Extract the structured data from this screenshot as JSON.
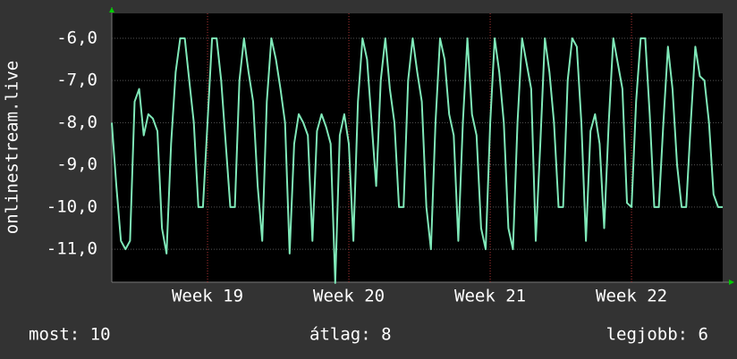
{
  "chart_data": {
    "type": "line",
    "y_label": "onlinestream.live",
    "series": [
      {
        "name": null,
        "color": "#7fe8b8",
        "values": [
          -8,
          -9.5,
          -10.8,
          -11,
          -10.8,
          -7.5,
          -7.2,
          -8.3,
          -7.8,
          -7.9,
          -8.2,
          -10.5,
          -11.1,
          -8.5,
          -6.8,
          -6,
          -6,
          -7,
          -8,
          -10,
          -10,
          -8,
          -6,
          -6,
          -7,
          -8.5,
          -10,
          -10,
          -7,
          -6,
          -6.8,
          -7.5,
          -9.5,
          -10.8,
          -7.5,
          -6,
          -6.5,
          -7.2,
          -8,
          -11.1,
          -8.5,
          -7.8,
          -8,
          -8.3,
          -10.8,
          -8.2,
          -7.8,
          -8.1,
          -8.5,
          -11.8,
          -8.3,
          -7.8,
          -8.5,
          -10.8,
          -7.5,
          -6,
          -6.5,
          -8,
          -9.5,
          -7,
          -6,
          -7.2,
          -8,
          -10,
          -10,
          -7,
          -6,
          -6.8,
          -7.5,
          -10,
          -11,
          -8,
          -6,
          -6.5,
          -7.8,
          -8.3,
          -10.8,
          -8,
          -6,
          -7.8,
          -8.3,
          -10.5,
          -11,
          -8,
          -6,
          -6.8,
          -8,
          -10.5,
          -11,
          -8,
          -6,
          -6.6,
          -7.2,
          -10.8,
          -8.5,
          -6,
          -6.8,
          -8,
          -10,
          -10,
          -7,
          -6,
          -6.2,
          -8,
          -10.8,
          -8.2,
          -7.8,
          -8.5,
          -10.5,
          -8,
          -6,
          -6.6,
          -7.2,
          -9.9,
          -10,
          -7.5,
          -6,
          -6,
          -7.8,
          -10,
          -10,
          -8,
          -6.2,
          -7.2,
          -9,
          -10,
          -10,
          -8,
          -6.2,
          -6.9,
          -7,
          -8,
          -9.7,
          -10,
          -10
        ]
      }
    ],
    "xlim": [
      0,
      134
    ],
    "xticks": [
      {
        "value": 21,
        "label": "Week 19"
      },
      {
        "value": 52,
        "label": "Week 20"
      },
      {
        "value": 83,
        "label": "Week 21"
      },
      {
        "value": 114,
        "label": "Week 22"
      }
    ],
    "ylim": [
      -11.78,
      -5.41
    ],
    "yticks": [
      {
        "value": -6,
        "label": "-6,0"
      },
      {
        "value": -7,
        "label": "-7,0"
      },
      {
        "value": -8,
        "label": "-8,0"
      },
      {
        "value": -9,
        "label": "-9,0"
      },
      {
        "value": -10,
        "label": "-10,0"
      },
      {
        "value": -11,
        "label": "-11,0"
      }
    ],
    "grid": true,
    "footer": [
      "most: 10",
      "átlag: 8",
      "legjobb: 6"
    ]
  }
}
